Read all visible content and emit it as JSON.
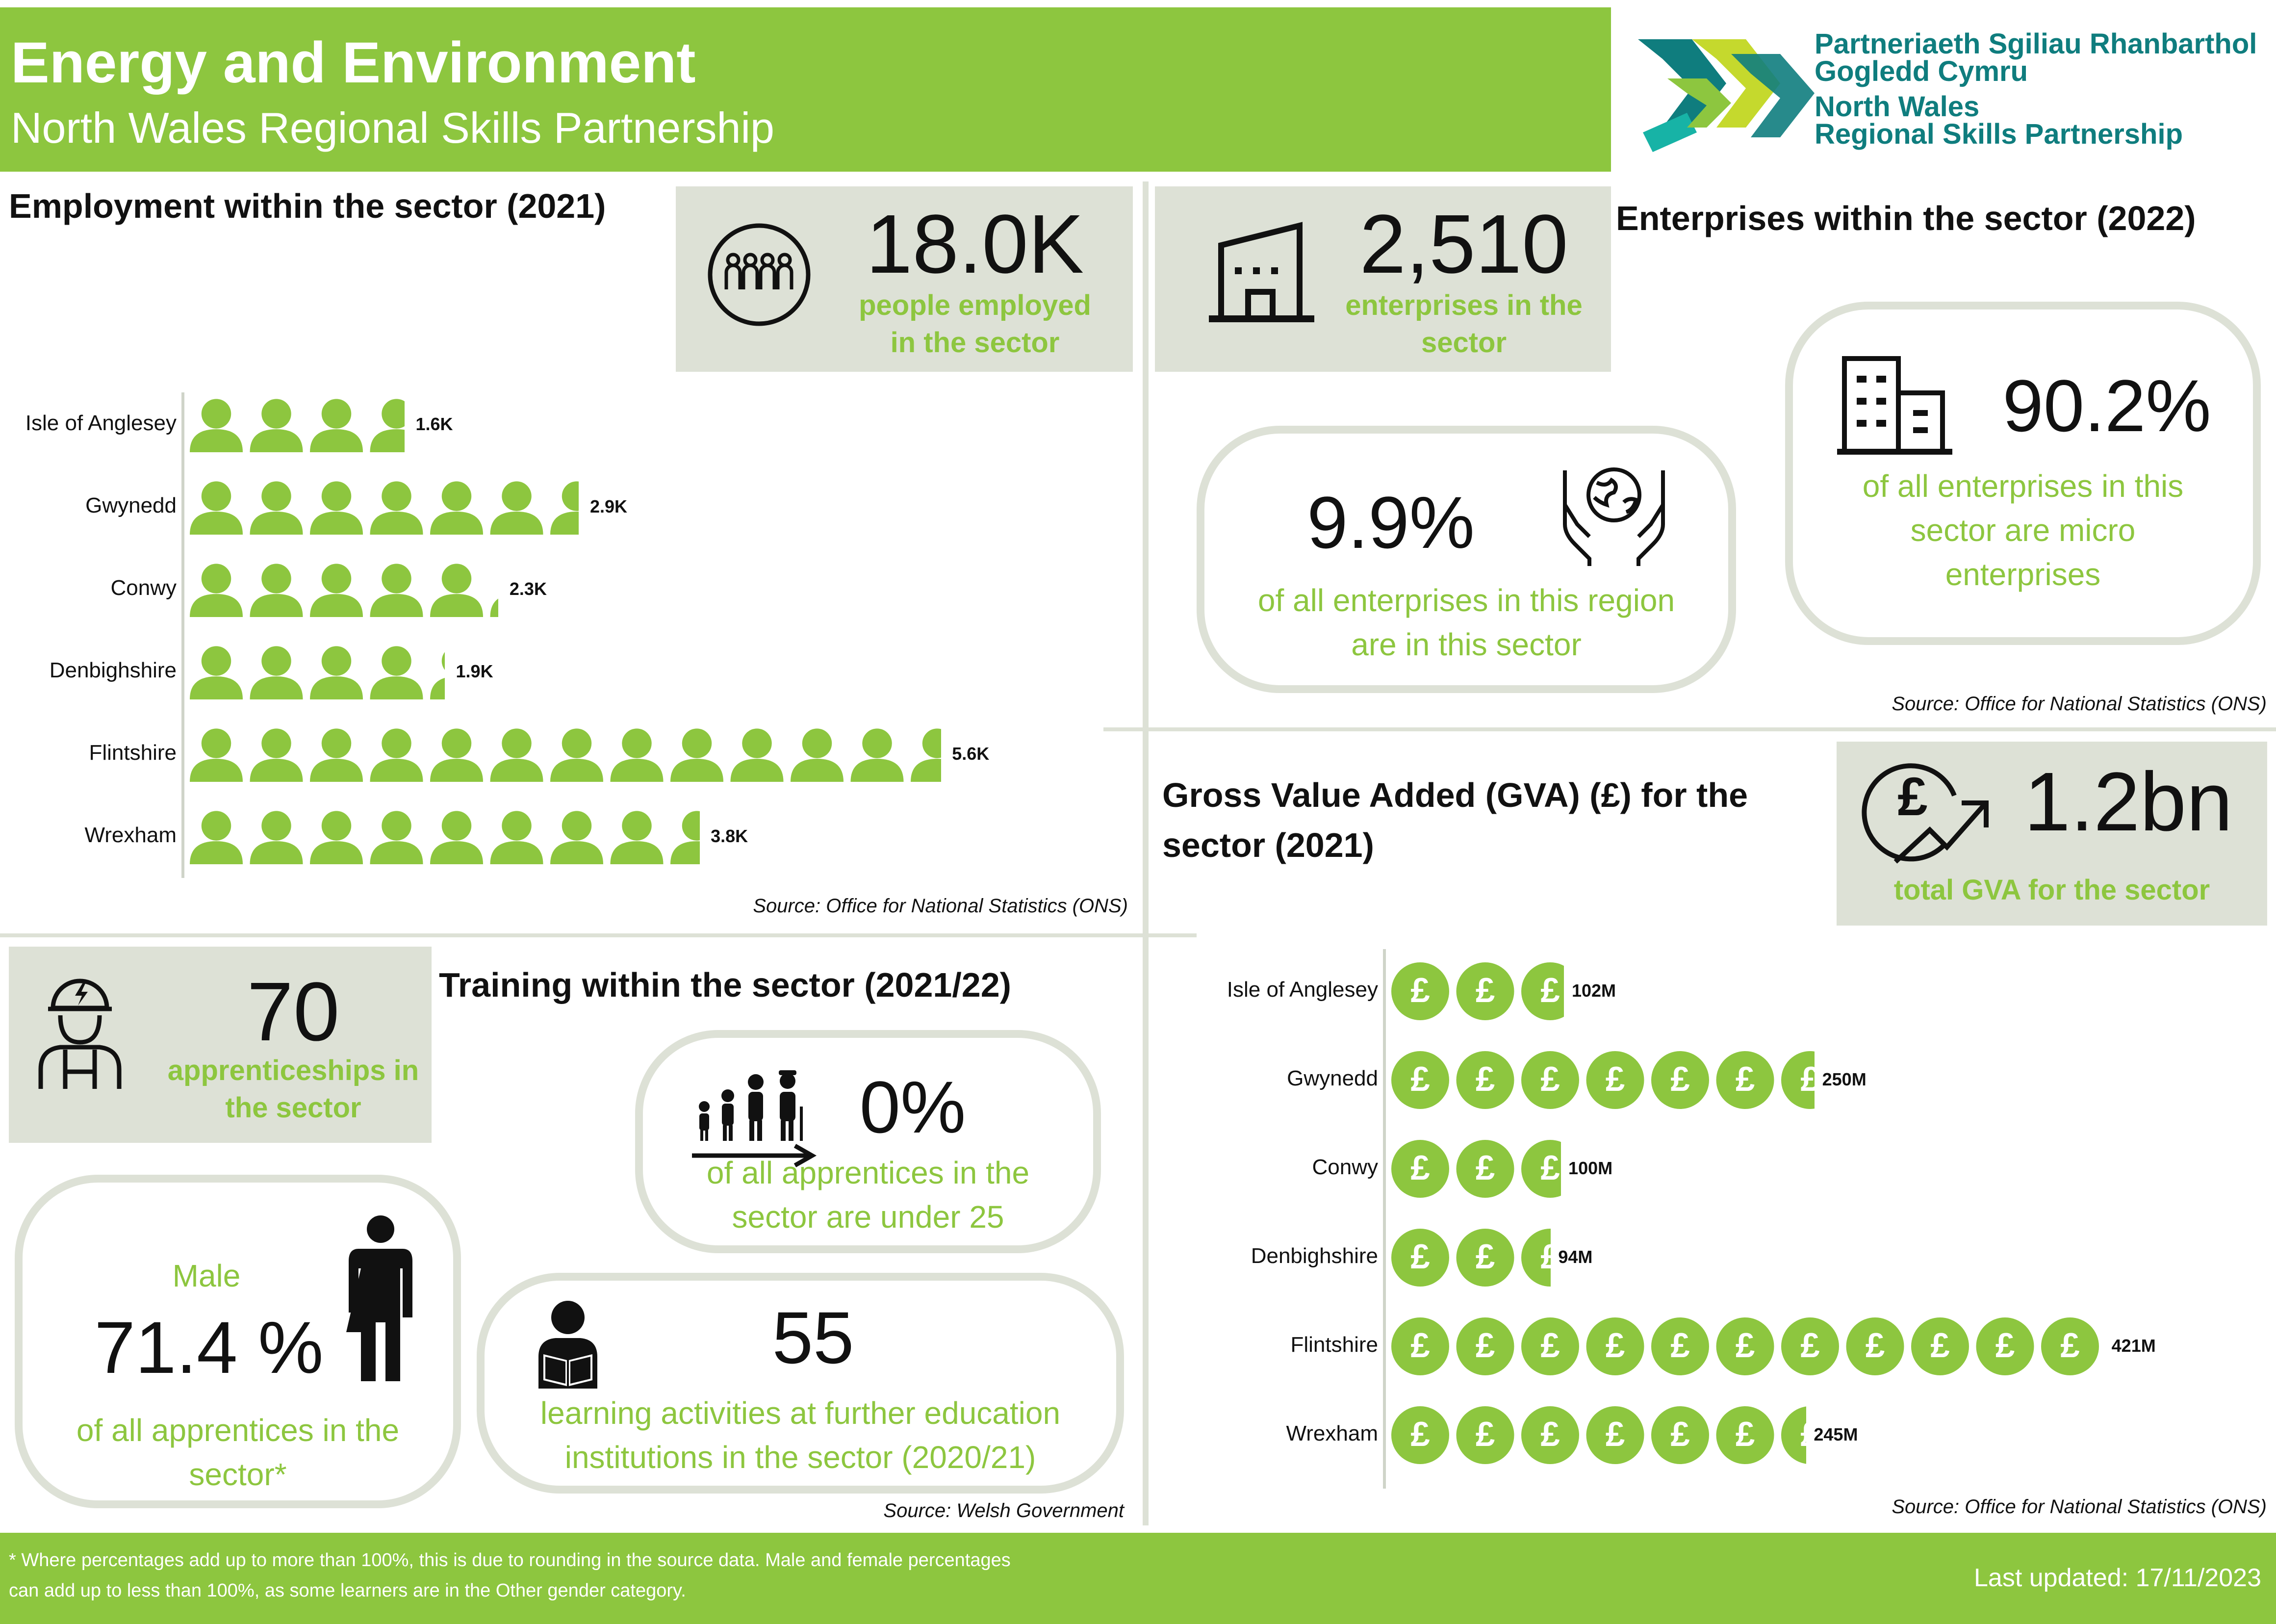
{
  "header": {
    "title": "Energy and Environment",
    "subtitle": "North Wales Regional Skills Partnership",
    "logo_welsh_line1": "Partneriaeth Sgiliau Rhanbarthol",
    "logo_welsh_line2": "Gogledd Cymru",
    "logo_english_line1": "North Wales",
    "logo_english_line2": "Regional Skills Partnership"
  },
  "employment": {
    "title": "Employment within the sector (2021)",
    "stat_value": "18.0K",
    "stat_caption_1": "people employed",
    "stat_caption_2": "in the sector",
    "source": "Source: Office for National Statistics (ONS)",
    "icon": "people-group-icon"
  },
  "enterprises": {
    "title": "Enterprises within the sector (2022)",
    "stat_value": "2,510",
    "stat_caption_1": "enterprises in the",
    "stat_caption_2": "sector",
    "region_share": "9.9%",
    "region_caption_1": "of all enterprises in this region",
    "region_caption_2": "are in this sector",
    "micro_share": "90.2%",
    "micro_caption_1": "of all enterprises in this",
    "micro_caption_2": "sector are micro",
    "micro_caption_3": "enterprises",
    "source": "Source: Office for National Statistics (ONS)"
  },
  "gva": {
    "title_1": "Gross Value Added (GVA) (£) for the",
    "title_2": "sector (2021)",
    "stat_value": "1.2bn",
    "stat_caption": "total GVA for the sector",
    "source": "Source: Office for National Statistics (ONS)",
    "coin_symbol": "£"
  },
  "training": {
    "title": "Training within the sector (2021/22)",
    "apprenticeships_value": "70",
    "apprenticeships_caption_1": "apprenticeships in",
    "apprenticeships_caption_2": "the sector",
    "under25_value": "0%",
    "under25_caption_1": "of all apprentices in the",
    "under25_caption_2": "sector are under 25",
    "male_label": "Male",
    "male_value": "71.4 %",
    "male_caption_1": "of all apprentices in the",
    "male_caption_2": "sector*",
    "learning_value": "55",
    "learning_caption_1": "learning activities at further education",
    "learning_caption_2": "institutions in the sector (2020/21)",
    "source": "Source: Welsh Government"
  },
  "footer": {
    "note_1": "* Where percentages add up to more than 100%, this is due to rounding in the source data. Male and female percentages",
    "note_2": "can add up to less than 100%, as some learners are in the Other gender category.",
    "last_updated": "Last updated: 17/11/2023"
  },
  "colors": {
    "accent": "#8dc63f",
    "panel": "#dde1d6",
    "logo_teal": "#0f7d7e",
    "logo_lime": "#c5d92d"
  },
  "chart_data": [
    {
      "type": "bar",
      "title": "Employment within the sector (2021)",
      "categories": [
        "Isle of Anglesey",
        "Gwynedd",
        "Conwy",
        "Denbighshire",
        "Flintshire",
        "Wrexham"
      ],
      "values": [
        1.6,
        2.9,
        2.3,
        1.9,
        5.6,
        3.8
      ],
      "value_labels": [
        "1.6K",
        "2.9K",
        "2.3K",
        "1.9K",
        "5.6K",
        "3.8K"
      ],
      "unit": "thousand people",
      "orientation": "horizontal",
      "marker": "person-icon"
    },
    {
      "type": "bar",
      "title": "Gross Value Added (GVA) (£) for the sector (2021)",
      "categories": [
        "Isle of Anglesey",
        "Gwynedd",
        "Conwy",
        "Denbighshire",
        "Flintshire",
        "Wrexham"
      ],
      "values": [
        102,
        250,
        100,
        94,
        421,
        245
      ],
      "value_labels": [
        "102M",
        "250M",
        "100M",
        "94M",
        "421M",
        "245M"
      ],
      "unit": "£ million",
      "orientation": "horizontal",
      "marker": "pound-coin-icon"
    }
  ]
}
